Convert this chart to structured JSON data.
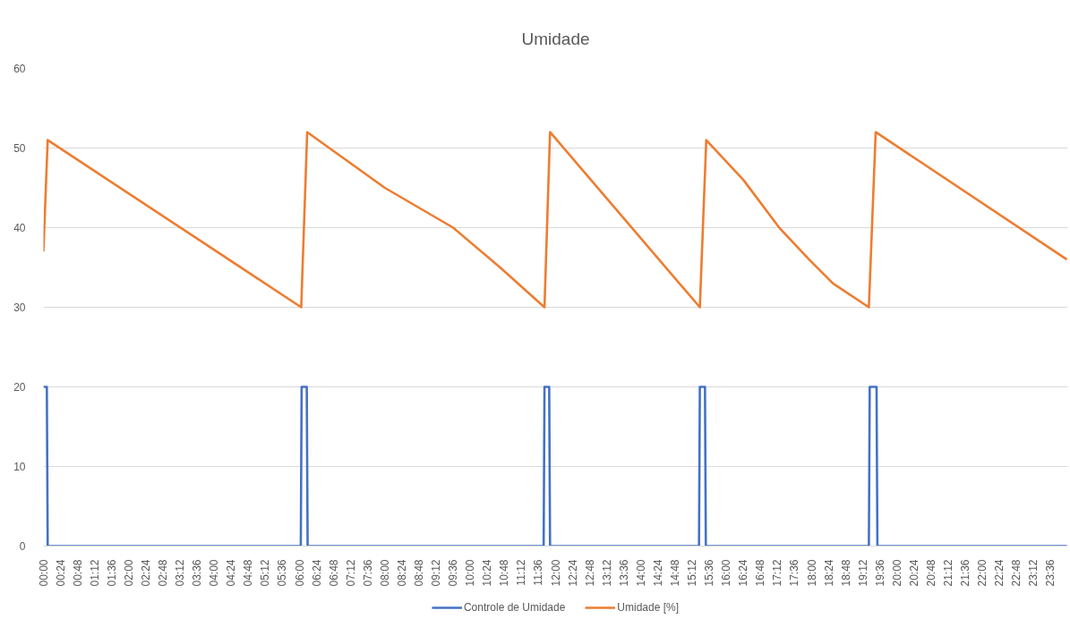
{
  "chart_data": {
    "type": "line",
    "title": "Umidade",
    "xlim": [
      0,
      24
    ],
    "ylim": [
      0,
      60
    ],
    "yticks": [
      0,
      10,
      20,
      30,
      40,
      50,
      60
    ],
    "xticks": [
      {
        "value": 0,
        "label": "00:00"
      },
      {
        "value": 0.4,
        "label": "00:24"
      },
      {
        "value": 0.8,
        "label": "00:48"
      },
      {
        "value": 1.2,
        "label": "01:12"
      },
      {
        "value": 1.6,
        "label": "01:36"
      },
      {
        "value": 2,
        "label": "02:00"
      },
      {
        "value": 2.4,
        "label": "02:24"
      },
      {
        "value": 2.8,
        "label": "02:48"
      },
      {
        "value": 3.2,
        "label": "03:12"
      },
      {
        "value": 3.6,
        "label": "03:36"
      },
      {
        "value": 4,
        "label": "04:00"
      },
      {
        "value": 4.4,
        "label": "04:24"
      },
      {
        "value": 4.8,
        "label": "04:48"
      },
      {
        "value": 5.2,
        "label": "05:12"
      },
      {
        "value": 5.6,
        "label": "05:36"
      },
      {
        "value": 6,
        "label": "06:00"
      },
      {
        "value": 6.4,
        "label": "06:24"
      },
      {
        "value": 6.8,
        "label": "06:48"
      },
      {
        "value": 7.2,
        "label": "07:12"
      },
      {
        "value": 7.6,
        "label": "07:36"
      },
      {
        "value": 8,
        "label": "08:00"
      },
      {
        "value": 8.4,
        "label": "08:24"
      },
      {
        "value": 8.8,
        "label": "08:48"
      },
      {
        "value": 9.2,
        "label": "09:12"
      },
      {
        "value": 9.6,
        "label": "09:36"
      },
      {
        "value": 10,
        "label": "10:00"
      },
      {
        "value": 10.4,
        "label": "10:24"
      },
      {
        "value": 10.8,
        "label": "10:48"
      },
      {
        "value": 11.2,
        "label": "11:12"
      },
      {
        "value": 11.6,
        "label": "11:36"
      },
      {
        "value": 12,
        "label": "12:00"
      },
      {
        "value": 12.4,
        "label": "12:24"
      },
      {
        "value": 12.8,
        "label": "12:48"
      },
      {
        "value": 13.2,
        "label": "13:12"
      },
      {
        "value": 13.6,
        "label": "13:36"
      },
      {
        "value": 14,
        "label": "14:00"
      },
      {
        "value": 14.4,
        "label": "14:24"
      },
      {
        "value": 14.8,
        "label": "14:48"
      },
      {
        "value": 15.2,
        "label": "15:12"
      },
      {
        "value": 15.6,
        "label": "15:36"
      },
      {
        "value": 16,
        "label": "16:00"
      },
      {
        "value": 16.4,
        "label": "16:24"
      },
      {
        "value": 16.8,
        "label": "16:48"
      },
      {
        "value": 17.2,
        "label": "17:12"
      },
      {
        "value": 17.6,
        "label": "17:36"
      },
      {
        "value": 18,
        "label": "18:00"
      },
      {
        "value": 18.4,
        "label": "18:24"
      },
      {
        "value": 18.8,
        "label": "18:48"
      },
      {
        "value": 19.2,
        "label": "19:12"
      },
      {
        "value": 19.6,
        "label": "19:36"
      },
      {
        "value": 20,
        "label": "20:00"
      },
      {
        "value": 20.4,
        "label": "20:24"
      },
      {
        "value": 20.8,
        "label": "20:48"
      },
      {
        "value": 21.2,
        "label": "21:12"
      },
      {
        "value": 21.6,
        "label": "21:36"
      },
      {
        "value": 22,
        "label": "22:00"
      },
      {
        "value": 22.4,
        "label": "22:24"
      },
      {
        "value": 22.8,
        "label": "22:48"
      },
      {
        "value": 23.2,
        "label": "23:12"
      },
      {
        "value": 23.6,
        "label": "23:36"
      }
    ],
    "grid": "y",
    "legend": "bottom",
    "series": [
      {
        "name": "Controle de Umidade",
        "color": "#4472c4",
        "x": [
          0,
          0.08,
          0.1,
          6.03,
          6.05,
          6.17,
          6.19,
          11.72,
          11.74,
          11.85,
          11.87,
          15.36,
          15.38,
          15.5,
          15.52,
          19.34,
          19.36,
          19.52,
          19.54,
          23.98
        ],
        "values": [
          20,
          20,
          0,
          0,
          20,
          20,
          0,
          0,
          20,
          20,
          0,
          0,
          20,
          20,
          0,
          0,
          20,
          20,
          0,
          0
        ]
      },
      {
        "name": "Umidade [%]",
        "color": "#ed7d31",
        "x": [
          0,
          0.1,
          6.04,
          6.18,
          8.0,
          9.6,
          10.7,
          11.74,
          11.87,
          15.38,
          15.53,
          16.4,
          17.24,
          17.94,
          18.5,
          19.34,
          19.5,
          23.98
        ],
        "values": [
          37,
          51,
          30,
          52,
          45,
          40,
          35,
          30,
          52,
          30,
          51,
          46,
          40,
          36,
          33,
          30,
          52,
          36
        ]
      }
    ]
  }
}
